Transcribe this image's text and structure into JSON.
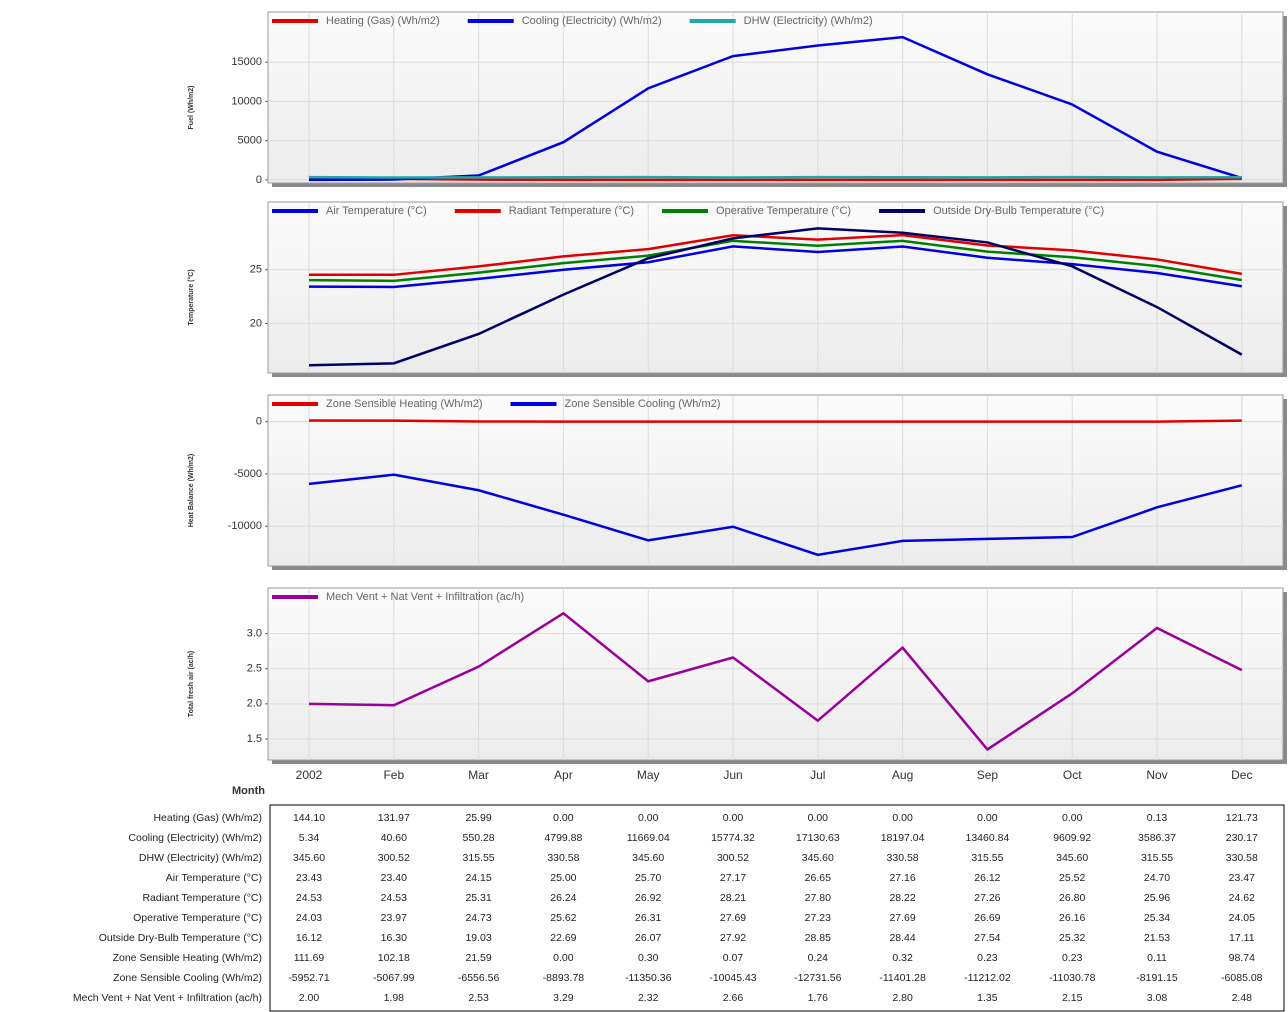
{
  "chart_data": [
    {
      "type": "line",
      "y_label": "Fuel (Wh/m2)",
      "ylim": [
        -400,
        21400
      ],
      "yticks": [
        0,
        5000,
        10000,
        15000
      ],
      "grid": true,
      "series": [
        {
          "name": "Heating (Gas) (Wh/m2)",
          "color": "#e00000",
          "values": [
            144.1,
            131.97,
            25.99,
            0,
            0,
            0,
            0,
            0,
            0,
            0,
            0.13,
            121.73
          ],
          "value_labels": [
            "144.10",
            "131.97",
            "25.99",
            "0.00",
            "0.00",
            "0.00",
            "0.00",
            "0.00",
            "0.00",
            "0.00",
            "0.13",
            "121.73"
          ]
        },
        {
          "name": "Cooling (Electricity) (Wh/m2)",
          "color": "#0000e0",
          "values": [
            5.34,
            40.6,
            550.28,
            4799.88,
            11669.04,
            15774.32,
            17130.63,
            18197.04,
            13460.84,
            9609.92,
            3586.37,
            230.17
          ],
          "value_labels": [
            "5.34",
            "40.60",
            "550.28",
            "4799.88",
            "11669.04",
            "15774.32",
            "17130.63",
            "18197.04",
            "13460.84",
            "9609.92",
            "3586.37",
            "230.17"
          ]
        },
        {
          "name": "DHW (Electricity) (Wh/m2)",
          "color": "#20a8a8",
          "values": [
            345.6,
            300.52,
            315.55,
            330.58,
            345.6,
            300.52,
            345.6,
            330.58,
            315.55,
            345.6,
            315.55,
            330.58
          ],
          "value_labels": [
            "345.60",
            "300.52",
            "315.55",
            "330.58",
            "345.60",
            "300.52",
            "345.60",
            "330.58",
            "315.55",
            "345.60",
            "315.55",
            "330.58"
          ]
        }
      ]
    },
    {
      "type": "line",
      "y_label": "Temperature (°C)",
      "ylim": [
        15.4,
        31.3
      ],
      "yticks": [
        20,
        25
      ],
      "grid": true,
      "series": [
        {
          "name": "Air Temperature (°C)",
          "color": "#0000e0",
          "values": [
            23.43,
            23.4,
            24.15,
            25,
            25.7,
            27.17,
            26.65,
            27.16,
            26.12,
            25.52,
            24.7,
            23.47
          ],
          "value_labels": [
            "23.43",
            "23.40",
            "24.15",
            "25.00",
            "25.70",
            "27.17",
            "26.65",
            "27.16",
            "26.12",
            "25.52",
            "24.70",
            "23.47"
          ]
        },
        {
          "name": "Radiant Temperature (°C)",
          "color": "#e00000",
          "values": [
            24.53,
            24.53,
            25.31,
            26.24,
            26.92,
            28.21,
            27.8,
            28.22,
            27.26,
            26.8,
            25.96,
            24.62
          ],
          "value_labels": [
            "24.53",
            "24.53",
            "25.31",
            "26.24",
            "26.92",
            "28.21",
            "27.80",
            "28.22",
            "27.26",
            "26.80",
            "25.96",
            "24.62"
          ]
        },
        {
          "name": "Operative Temperature (°C)",
          "color": "#008000",
          "values": [
            24.03,
            23.97,
            24.73,
            25.62,
            26.31,
            27.69,
            27.23,
            27.69,
            26.69,
            26.16,
            25.34,
            24.05
          ],
          "value_labels": [
            "24.03",
            "23.97",
            "24.73",
            "25.62",
            "26.31",
            "27.69",
            "27.23",
            "27.69",
            "26.69",
            "26.16",
            "25.34",
            "24.05"
          ]
        },
        {
          "name": "Outside Dry-Bulb Temperature (°C)",
          "color": "#000066",
          "values": [
            16.12,
            16.3,
            19.03,
            22.69,
            26.07,
            27.92,
            28.85,
            28.44,
            27.54,
            25.32,
            21.53,
            17.11
          ],
          "value_labels": [
            "16.12",
            "16.30",
            "19.03",
            "22.69",
            "26.07",
            "27.92",
            "28.85",
            "28.44",
            "27.54",
            "25.32",
            "21.53",
            "17.11"
          ]
        }
      ]
    },
    {
      "type": "line",
      "y_label": "Heat Balance (Wh/m2)",
      "ylim": [
        -13800,
        2550
      ],
      "yticks": [
        -10000,
        -5000,
        0
      ],
      "grid": true,
      "series": [
        {
          "name": "Zone Sensible Heating (Wh/m2)",
          "color": "#e00000",
          "values": [
            111.69,
            102.18,
            21.59,
            0,
            0.3,
            0.07,
            0.24,
            0.32,
            0.23,
            0.23,
            0.11,
            98.74
          ],
          "value_labels": [
            "111.69",
            "102.18",
            "21.59",
            "0.00",
            "0.30",
            "0.07",
            "0.24",
            "0.32",
            "0.23",
            "0.23",
            "0.11",
            "98.74"
          ]
        },
        {
          "name": "Zone Sensible Cooling (Wh/m2)",
          "color": "#0000e0",
          "values": [
            -5952.71,
            -5067.99,
            -6556.56,
            -8893.78,
            -11350.36,
            -10045.43,
            -12731.56,
            -11401.28,
            -11212.02,
            -11030.78,
            -8191.15,
            -6085.08
          ],
          "value_labels": [
            "-5952.71",
            "-5067.99",
            "-6556.56",
            "-8893.78",
            "-11350.36",
            "-10045.43",
            "-12731.56",
            "-11401.28",
            "-11212.02",
            "-11030.78",
            "-8191.15",
            "-6085.08"
          ]
        }
      ]
    },
    {
      "type": "line",
      "y_label": "Total fresh air (ac/h)",
      "ylim": [
        1.2,
        3.65
      ],
      "yticks": [
        1.5,
        {
          "value": 2,
          "label": "2.0"
        },
        2.5,
        {
          "value": 3,
          "label": "3.0"
        }
      ],
      "grid": true,
      "x_label": "Month",
      "categories": [
        "2002",
        "Feb",
        "Mar",
        "Apr",
        "May",
        "Jun",
        "Jul",
        "Aug",
        "Sep",
        "Oct",
        "Nov",
        "Dec"
      ],
      "series": [
        {
          "name": "Mech Vent + Nat Vent + Infiltration (ac/h)",
          "color": "#990099",
          "values": [
            2,
            1.98,
            2.53,
            3.29,
            2.32,
            2.66,
            1.76,
            2.8,
            1.35,
            2.15,
            3.08,
            2.48
          ],
          "value_labels": [
            "2.00",
            "1.98",
            "2.53",
            "3.29",
            "2.32",
            "2.66",
            "1.76",
            "2.80",
            "1.35",
            "2.15",
            "3.08",
            "2.48"
          ]
        }
      ]
    }
  ]
}
